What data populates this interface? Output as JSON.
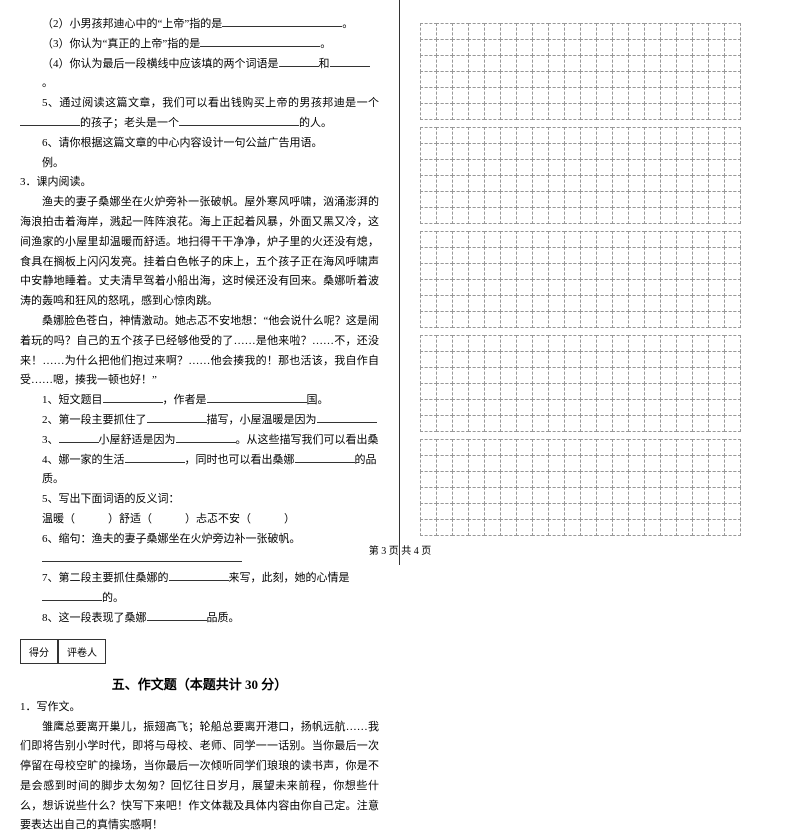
{
  "left": {
    "items": [
      "（2）小男孩邦迪心中的“上帝”指的是",
      "（3）你认为“真正的上帝”指的是",
      "（4）你认为最后一段横线中应该填的两个词语是"
    ],
    "q5": "5、通过阅读这篇文章，我们可以看出钱购买上帝的男孩邦迪是一个",
    "q5_suffix": "的孩子；老头是一个",
    "q5_end": "的人。",
    "q6": "6、请你根据这篇文章的中心内容设计一句公益广告用语。",
    "li": "例。",
    "reading_t": "3．课内阅读。",
    "p1": "渔夫的妻子桑娜坐在火炉旁补一张破帆。屋外寒风呼啸，汹涌澎湃的海浪拍击着海岸，溅起一阵阵浪花。海上正起着风暴，外面又黑又冷，这间渔家的小屋里却温暖而舒适。地扫得干干净净，炉子里的火还没有熄，食具在搁板上闪闪发亮。挂着白色帐子的床上，五个孩子正在海风呼啸声中安静地睡着。丈夫清早驾着小船出海，这时候还没有回来。桑娜听着波涛的轰鸣和狂风的怒吼，感到心惊肉跳。",
    "p2": "桑娜脸色苍白，神情激动。她忐忑不安地想：“他会说什么呢？这是闹着玩的吗？自己的五个孩子已经够他受的了……是他来啦？……不，还没来！……为什么把他们抱过来啊？……他会揍我的！那也活该，我自作自受……嗯，揍我一顿也好！”",
    "r1_a": "1、短文题目",
    "r1_b": "，作者是",
    "r1_c": "国。",
    "r2_a": "2、第一段主要抓住了",
    "r2_b": "描写，小屋温暖是因为",
    "r3_a": "3、",
    "r3_b": "小屋舒适是因为",
    "r3_c": "。从这些描写我们可以看出桑",
    "r4_a": "4、娜一家的生活",
    "r4_b": "，同时也可以看出桑娜",
    "r4_c": "的品质。",
    "r5": "5、写出下面词语的反义词：",
    "r5_words": "温暖（　　　）舒适（　　　）忐忑不安（　　　）",
    "r6": "6、缩句：渔夫的妻子桑娜坐在火炉旁边补一张破帆。",
    "r7_a": "7、第二段主要抓住桑娜的",
    "r7_b": "来写，此刻，她的心情是",
    "r7_c": "的。",
    "r8_a": "8、这一段表现了桑娜",
    "r8_b": "品质。",
    "score_a": "得分",
    "score_b": "评卷人",
    "section": "五、作文题（本题共计 30 分）",
    "essay_t": "1．写作文。",
    "essay": "雏鹰总要离开巢儿，振翅高飞；轮船总要离开港口，扬帆远航……我们即将告别小学时代，即将与母校、老师、同学一一话别。当你最后一次停留在母校空旷的操场，当你最后一次倾听同学们琅琅的读书声，你是不是会感到时间的脚步太匆匆？回忆往日岁月，展望未来前程，你想些什么，想诉说些什么？快写下来吧！作文体裁及具体内容由你自己定。注意要表达出自己的真情实感啊！"
  },
  "footer": "第 3 页 共 4 页",
  "grid": {
    "blocks": 5,
    "rows_per_block": 6,
    "cols": 20
  }
}
